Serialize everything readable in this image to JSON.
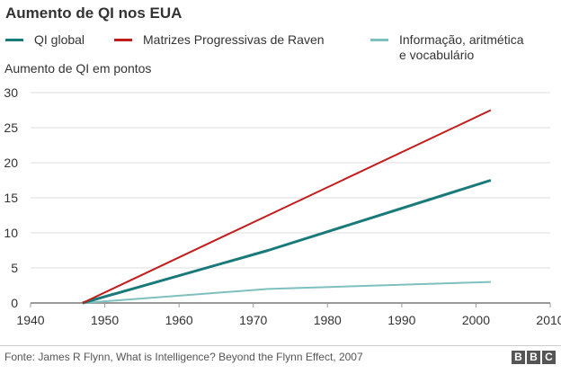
{
  "title": "Aumento de QI nos EUA",
  "source": "Fonte: James R Flynn, What is Intelligence? Beyond the Flynn Effect, 2007",
  "logo": [
    "B",
    "B",
    "C"
  ],
  "chart_data": {
    "type": "line",
    "ylabel": "Aumento de QI em pontos",
    "xlabel": "",
    "xlim": [
      1940,
      2010
    ],
    "ylim": [
      0,
      30
    ],
    "xticks": [
      1940,
      1950,
      1960,
      1970,
      1980,
      1990,
      2000,
      2010
    ],
    "yticks": [
      0,
      5,
      10,
      15,
      20,
      25,
      30
    ],
    "grid": "horizontal",
    "legend_position": "top",
    "series": [
      {
        "name": "QI global",
        "color": "#1a7a7a",
        "x": [
          1947,
          1972,
          2002
        ],
        "y": [
          0,
          7.5,
          17.5
        ]
      },
      {
        "name": "Matrizes Progressivas de Raven",
        "color": "#c31c1c",
        "x": [
          1947,
          1972,
          2002
        ],
        "y": [
          0,
          12.5,
          27.5
        ]
      },
      {
        "name": "Informação, aritmética\ne vocabulário",
        "color": "#7ec0c0",
        "x": [
          1947,
          1972,
          2002
        ],
        "y": [
          0,
          2,
          3
        ]
      }
    ]
  }
}
